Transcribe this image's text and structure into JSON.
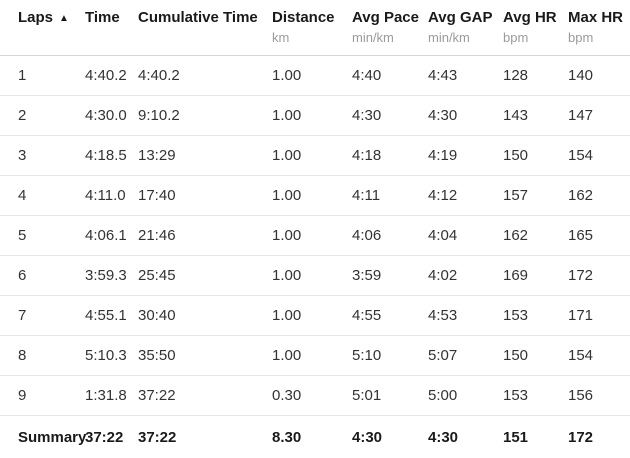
{
  "table": {
    "sort_icon": "▲",
    "columns": [
      {
        "key": "laps",
        "label": "Laps",
        "unit": "",
        "sorted": true
      },
      {
        "key": "time",
        "label": "Time",
        "unit": "",
        "sorted": false
      },
      {
        "key": "cumulative-time",
        "label": "Cumulative Time",
        "unit": "",
        "sorted": false
      },
      {
        "key": "distance",
        "label": "Distance",
        "unit": "km",
        "sorted": false
      },
      {
        "key": "avg-pace",
        "label": "Avg Pace",
        "unit": "min/km",
        "sorted": false
      },
      {
        "key": "avg-gap",
        "label": "Avg GAP",
        "unit": "min/km",
        "sorted": false
      },
      {
        "key": "avg-hr",
        "label": "Avg HR",
        "unit": "bpm",
        "sorted": false
      },
      {
        "key": "max-hr",
        "label": "Max HR",
        "unit": "bpm",
        "sorted": false
      }
    ],
    "rows": [
      [
        "1",
        "4:40.2",
        "4:40.2",
        "1.00",
        "4:40",
        "4:43",
        "128",
        "140"
      ],
      [
        "2",
        "4:30.0",
        "9:10.2",
        "1.00",
        "4:30",
        "4:30",
        "143",
        "147"
      ],
      [
        "3",
        "4:18.5",
        "13:29",
        "1.00",
        "4:18",
        "4:19",
        "150",
        "154"
      ],
      [
        "4",
        "4:11.0",
        "17:40",
        "1.00",
        "4:11",
        "4:12",
        "157",
        "162"
      ],
      [
        "5",
        "4:06.1",
        "21:46",
        "1.00",
        "4:06",
        "4:04",
        "162",
        "165"
      ],
      [
        "6",
        "3:59.3",
        "25:45",
        "1.00",
        "3:59",
        "4:02",
        "169",
        "172"
      ],
      [
        "7",
        "4:55.1",
        "30:40",
        "1.00",
        "4:55",
        "4:53",
        "153",
        "171"
      ],
      [
        "8",
        "5:10.3",
        "35:50",
        "1.00",
        "5:10",
        "5:07",
        "150",
        "154"
      ],
      [
        "9",
        "1:31.8",
        "37:22",
        "0.30",
        "5:01",
        "5:00",
        "153",
        "156"
      ]
    ],
    "summary": [
      "Summary",
      "37:22",
      "37:22",
      "8.30",
      "4:30",
      "4:30",
      "151",
      "172"
    ]
  },
  "colors": {
    "header_text": "#1a1a1a",
    "unit_text": "#9b9b9b",
    "data_text": "#333333",
    "row_border": "#e7e7e7",
    "header_border": "#d6d6d6",
    "background": "#ffffff"
  }
}
